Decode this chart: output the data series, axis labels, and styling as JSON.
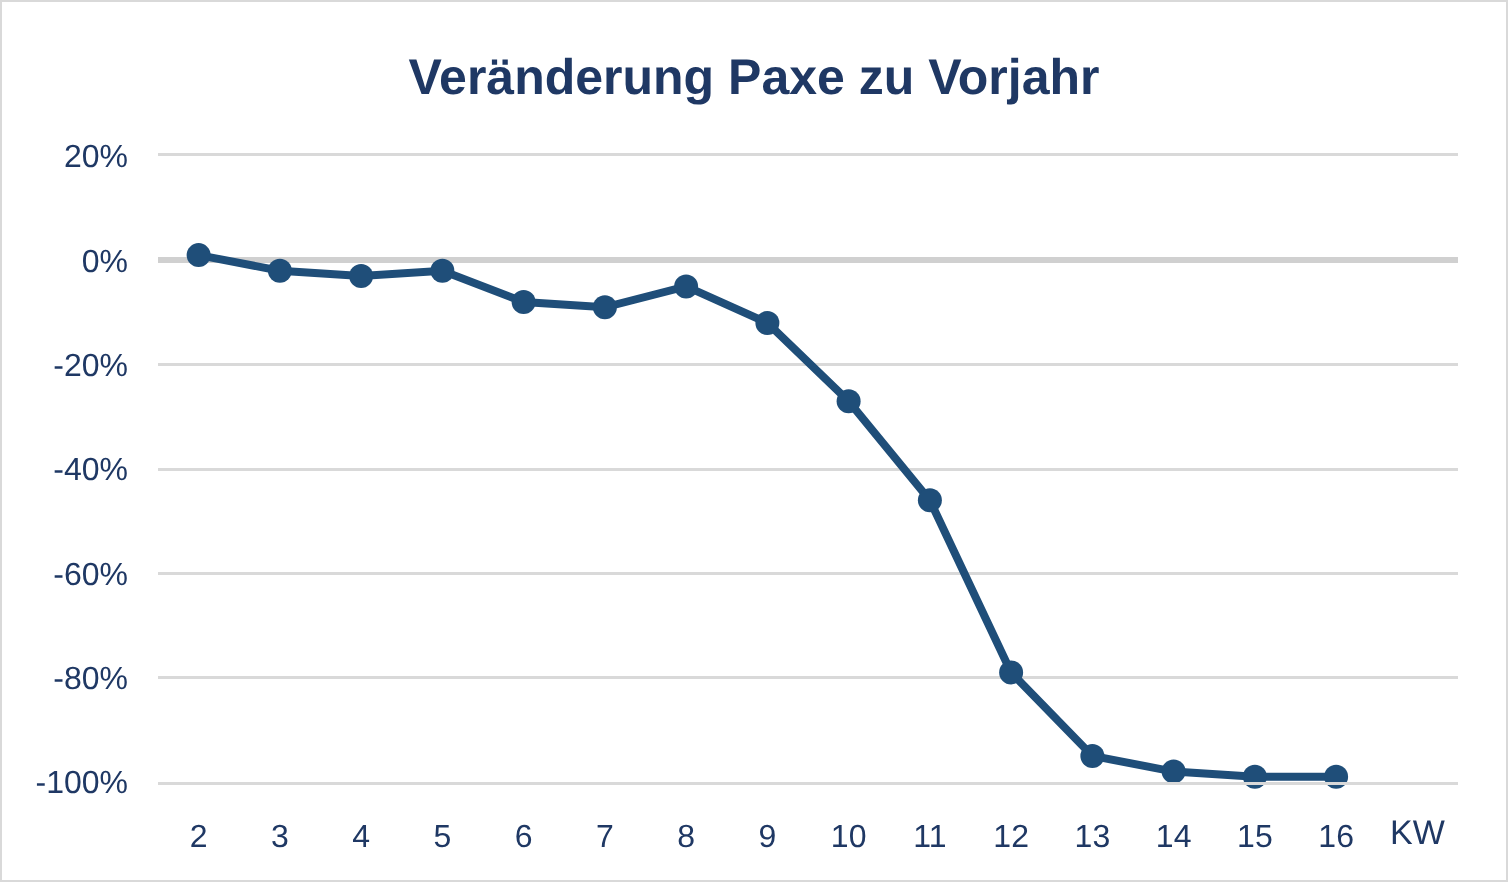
{
  "chart_data": {
    "type": "line",
    "title": "Veränderung Paxe zu Vorjahr",
    "xlabel": "KW",
    "categories": [
      "2",
      "3",
      "4",
      "5",
      "6",
      "7",
      "8",
      "9",
      "10",
      "11",
      "12",
      "13",
      "14",
      "15",
      "16"
    ],
    "series": [
      {
        "color": "#1f4e79",
        "values": [
          1,
          -2,
          -3,
          -2,
          -8,
          -9,
          -5,
          -12,
          -27,
          -46,
          -79,
          -95,
          -98,
          -99,
          -99
        ]
      }
    ],
    "ylim": [
      -100,
      20
    ],
    "yticks": [
      {
        "value": 20,
        "label": "20%"
      },
      {
        "value": 0,
        "label": "0%"
      },
      {
        "value": -20,
        "label": "-20%"
      },
      {
        "value": -40,
        "label": "-40%"
      },
      {
        "value": -60,
        "label": "-60%"
      },
      {
        "value": -80,
        "label": "-80%"
      },
      {
        "value": -100,
        "label": "-100%"
      }
    ],
    "grid": "y",
    "marker": "circle",
    "line_style": "solid"
  }
}
